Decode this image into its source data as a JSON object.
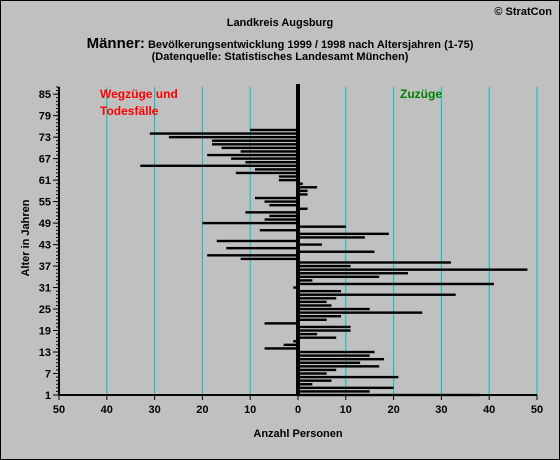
{
  "copyright": "© StratCon",
  "title": {
    "line1": "Landkreis Augsburg",
    "line2_big": "Männer:",
    "line2_rest": " Bevölkerungsentwicklung 1999 / 1998  nach Altersjahren (1-75)",
    "line3": "(Datenquelle: Statistisches Landesamt München)"
  },
  "colors": {
    "background": "#c0c0c0",
    "grid": "#00c0c0",
    "bars": "#000000",
    "left_label": "#ff0000",
    "right_label": "#008000"
  },
  "chart_data": {
    "type": "bar",
    "orientation": "horizontal",
    "xlabel": "Anzahl Personen",
    "ylabel": "Alter in Jahren",
    "xlim": [
      -50,
      50
    ],
    "ylim": [
      1,
      87
    ],
    "x_tick_labels": [
      "50",
      "40",
      "30",
      "20",
      "10",
      "0",
      "10",
      "20",
      "30",
      "40",
      "50"
    ],
    "x_tick_values": [
      -50,
      -40,
      -30,
      -20,
      -10,
      0,
      10,
      20,
      30,
      40,
      50
    ],
    "y_tick_values": [
      1,
      7,
      13,
      19,
      25,
      31,
      37,
      43,
      49,
      55,
      61,
      67,
      73,
      79,
      85
    ],
    "grid": "vertical",
    "annotations": [
      {
        "text_lines": [
          "Wegzüge und",
          "Todesfälle"
        ],
        "side": "left"
      },
      {
        "text_lines": [
          "Zuzüge"
        ],
        "side": "right"
      }
    ],
    "series": [
      {
        "ages": [
          1,
          2,
          3,
          4,
          5,
          6,
          7,
          8,
          9,
          10,
          11,
          12,
          13,
          14,
          15,
          16,
          17,
          18,
          19,
          20,
          21,
          22,
          23,
          24,
          25,
          26,
          27,
          28,
          29,
          30,
          31,
          32,
          33,
          34,
          35,
          36,
          37,
          38,
          39,
          40,
          41,
          42,
          43,
          44,
          45,
          46,
          47,
          48,
          49,
          50,
          51,
          52,
          53,
          54,
          55,
          56,
          57,
          58,
          59,
          60,
          61,
          62,
          63,
          64,
          65,
          66,
          67,
          68,
          69,
          70,
          71,
          72,
          73,
          74,
          75
        ],
        "values": [
          38,
          15,
          20,
          3,
          7,
          21,
          6,
          8,
          17,
          13,
          18,
          15,
          16,
          -7,
          -3,
          -1,
          8,
          4,
          11,
          11,
          -7,
          6,
          9,
          26,
          15,
          7,
          6,
          8,
          33,
          9,
          -1,
          41,
          3,
          17,
          23,
          48,
          11,
          32,
          -12,
          -19,
          16,
          -15,
          5,
          -17,
          14,
          19,
          -8,
          10,
          -20,
          -7,
          -6,
          -11,
          2,
          -6,
          -7,
          -9,
          2,
          2,
          4,
          1,
          -4,
          -4,
          -13,
          -9,
          -33,
          -11,
          -14,
          -19,
          -12,
          -16,
          -18,
          -18,
          -27,
          -31,
          -10
        ]
      }
    ]
  }
}
